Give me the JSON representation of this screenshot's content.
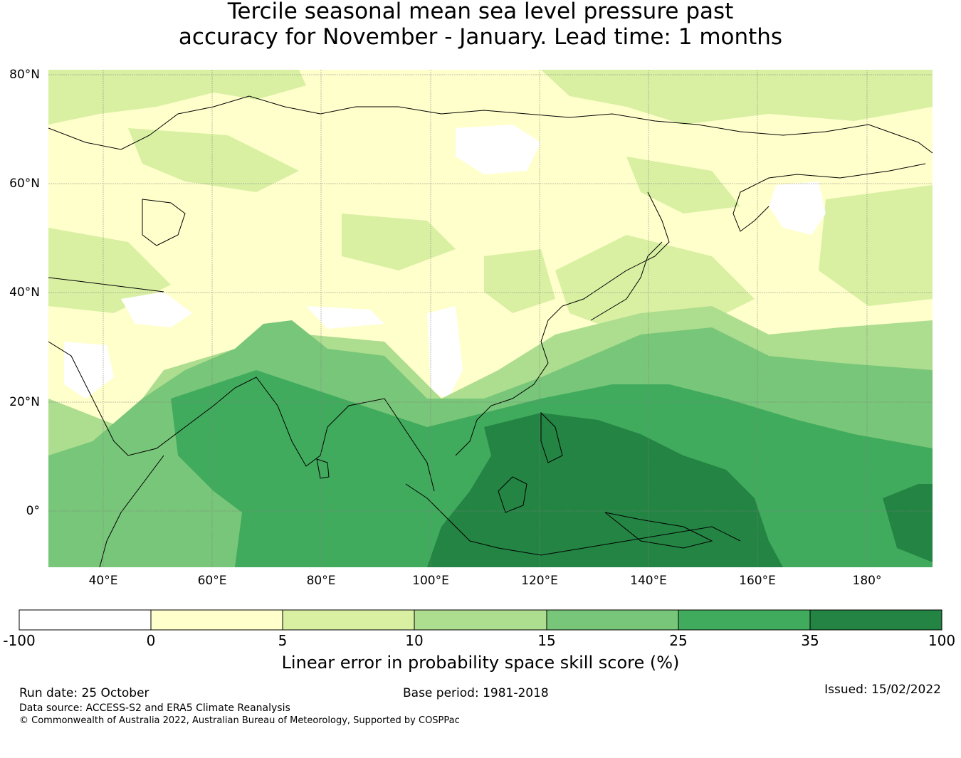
{
  "title": {
    "line1": "Tercile seasonal mean sea level pressure past",
    "line2": "accuracy for November - January. Lead time: 1 months"
  },
  "map": {
    "lat_labels": [
      "80°N",
      "60°N",
      "40°N",
      "20°N",
      "0°"
    ],
    "lon_labels": [
      "40°E",
      "60°E",
      "80°E",
      "100°E",
      "120°E",
      "140°E",
      "160°E",
      "180°"
    ],
    "lon_range": [
      30,
      192
    ],
    "lat_range": [
      -10,
      81
    ],
    "grid": true
  },
  "colorbar": {
    "bounds": [
      "-100",
      "0",
      "5",
      "10",
      "15",
      "25",
      "35",
      "100"
    ],
    "colors": [
      "#ffffff",
      "#ffffcc",
      "#d9f0a3",
      "#addd8e",
      "#78c679",
      "#41ab5d",
      "#238443"
    ],
    "label": "Linear error in probability space skill score (%)"
  },
  "footer": {
    "run_date": "Run date: 25 October",
    "base_period": "Base period: 1981-2018",
    "issued": "Issued: 15/02/2022",
    "data_source": "Data source: ACCESS-S2 and ERA5 Climate Reanalysis",
    "copyright": "© Commonwealth of Australia 2022, Australian Bureau of Meteorology, Supported by COSPPac"
  }
}
